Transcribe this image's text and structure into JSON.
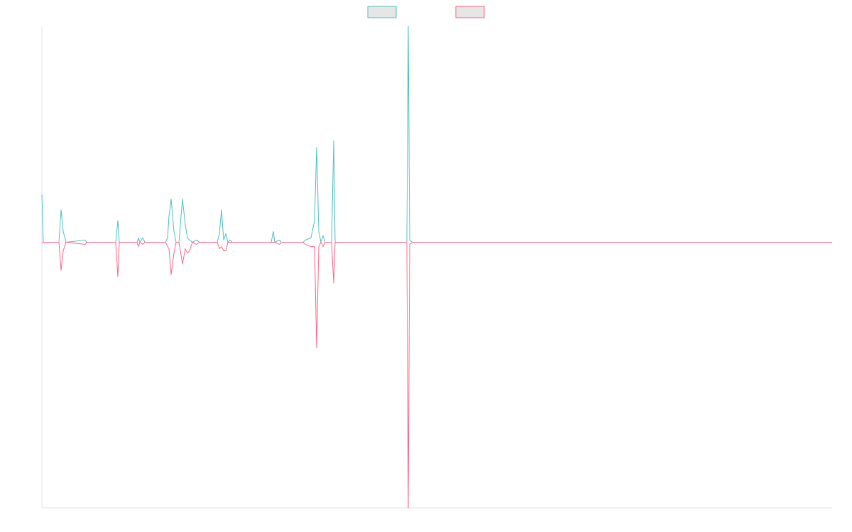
{
  "chart_data": {
    "type": "line",
    "x": [
      0,
      2,
      24,
      27,
      30,
      34,
      61,
      63,
      104,
      107,
      109,
      134,
      136,
      138,
      142,
      145,
      174,
      177,
      179,
      182,
      186,
      189,
      193,
      198,
      202,
      205,
      208,
      212,
      218,
      222,
      247,
      250,
      253,
      256,
      259,
      262,
      265,
      268,
      323,
      326,
      328,
      335,
      337,
      344,
      368,
      371,
      379,
      384,
      387,
      390,
      393,
      396,
      399,
      408,
      411,
      413,
      514,
      516,
      518,
      522,
      1113
    ],
    "xlim": [
      0,
      1113
    ],
    "ylim": [
      -123,
      100
    ],
    "series": [
      {
        "color": "#4bc0c0",
        "values": [
          22,
          0,
          0,
          15,
          5,
          0,
          1,
          0,
          0,
          10,
          0,
          0,
          2,
          0,
          2,
          0,
          0,
          2,
          12,
          20,
          5,
          0,
          0,
          20,
          8,
          2,
          1,
          0,
          1,
          0,
          0,
          4,
          15,
          1,
          4,
          0,
          1,
          0,
          0,
          5,
          0,
          1,
          0,
          0,
          0,
          1,
          2,
          10,
          44,
          5,
          0,
          3,
          0,
          0,
          47,
          0,
          0,
          100,
          1,
          0,
          0
        ]
      },
      {
        "color": "#ff6384",
        "values": [
          0,
          0,
          0,
          -13,
          -4,
          0,
          -1,
          0,
          0,
          -16,
          0,
          0,
          -2,
          0,
          -1,
          0,
          0,
          -2,
          -3,
          -15,
          -5,
          0,
          0,
          -10,
          -3,
          -5,
          -4,
          0,
          -1,
          0,
          0,
          -3,
          -2,
          -4,
          -4,
          0,
          0,
          0,
          0,
          0,
          0,
          -1,
          0,
          0,
          0,
          -1,
          -2,
          -2,
          -49,
          -2,
          0,
          -2,
          0,
          0,
          -19,
          0,
          0,
          -123,
          -1,
          0,
          0
        ]
      }
    ]
  }
}
